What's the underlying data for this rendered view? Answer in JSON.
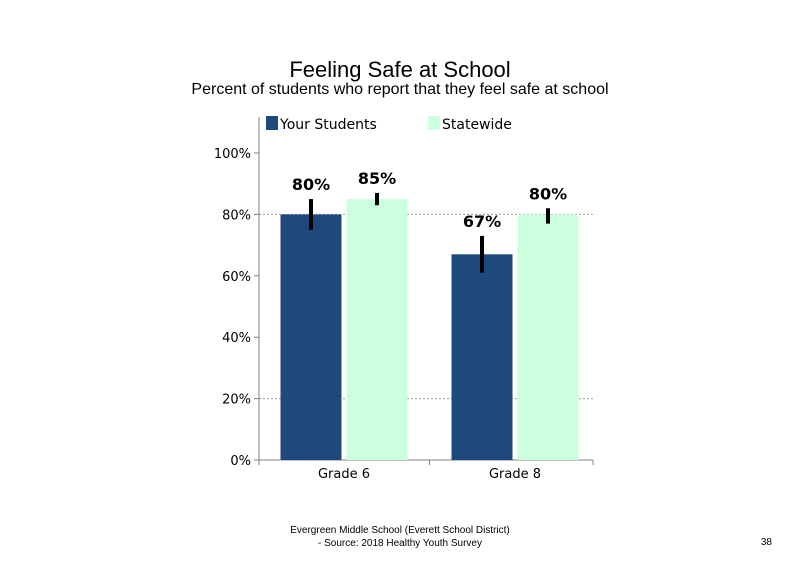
{
  "chart_data": {
    "type": "bar",
    "title": "Feeling  Safe at School",
    "subtitle": "Percent of students  who report that they feel safe at school",
    "categories": [
      "Grade 6",
      "Grade 8"
    ],
    "series": [
      {
        "name": "Your Students",
        "color": "#1f497d",
        "values": [
          80,
          67
        ],
        "labels": [
          "80%",
          "67%"
        ],
        "error_low": [
          75,
          61
        ],
        "error_high": [
          85,
          73
        ]
      },
      {
        "name": "Statewide",
        "color": "#ccffdd",
        "values": [
          85,
          80
        ],
        "labels": [
          "85%",
          "80%"
        ],
        "error_low": [
          83,
          77
        ],
        "error_high": [
          87,
          82
        ]
      }
    ],
    "y_ticks": [
      0,
      20,
      40,
      60,
      80,
      100
    ],
    "y_tick_labels": [
      "0%",
      "20%",
      "40%",
      "60%",
      "80%",
      "100%"
    ],
    "ylim": [
      0,
      100
    ],
    "gridlines": [
      20,
      80
    ],
    "legend_position": "top"
  },
  "footer": {
    "line1": "Evergreen Middle  School (Everett School District)",
    "line2": "- Source: 2018 Healthy  Youth Survey"
  },
  "page_number": "38"
}
